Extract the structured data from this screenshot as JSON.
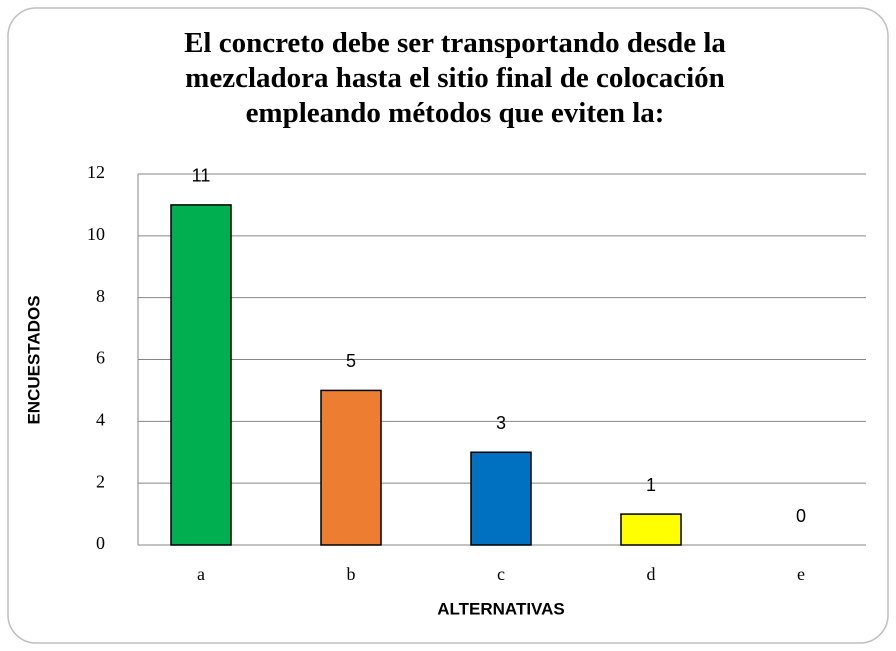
{
  "chart_data": {
    "type": "bar",
    "title": "El concreto debe ser transportando desde la mezcladora hasta el sitio final de colocación empleando métodos que eviten la:",
    "categories": [
      "a",
      "b",
      "c",
      "d",
      "e"
    ],
    "values": [
      11,
      5,
      3,
      1,
      0
    ],
    "colors": [
      "#00b050",
      "#ed7d31",
      "#0070c0",
      "#ffff00",
      "#7030a0"
    ],
    "xlabel": "ALTERNATIVAS",
    "ylabel": "ENCUESTADOS",
    "ylim": [
      0,
      12
    ],
    "yticks": [
      0,
      2,
      4,
      6,
      8,
      10,
      12
    ],
    "grid": true
  }
}
